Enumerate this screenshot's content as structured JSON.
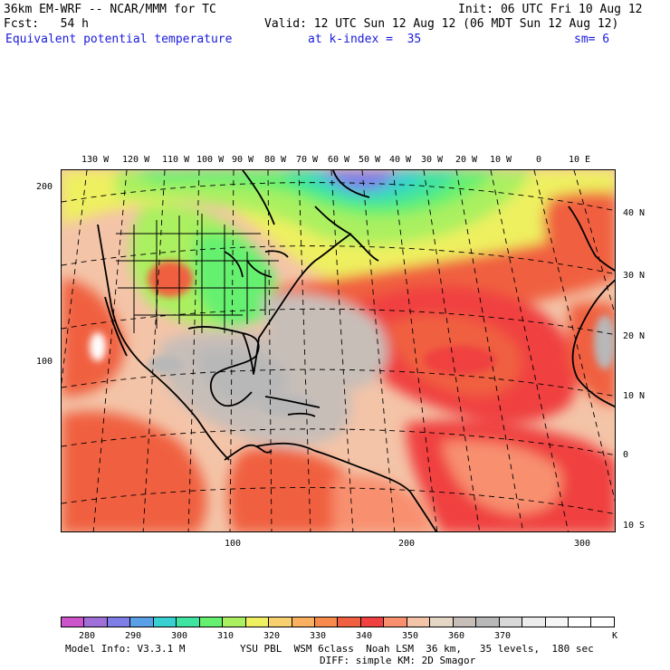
{
  "header": {
    "model": "36km EM-WRF -- NCAR/MMM for TC",
    "init": "Init: 06 UTC Fri 10 Aug 12",
    "fcst": "Fcst:   54 h",
    "valid": "Valid: 12 UTC Sun 12 Aug 12 (06 MDT Sun 12 Aug 12)",
    "field": "Equivalent potential temperature",
    "level": "at k-index =  35",
    "smooth": "sm= 6"
  },
  "top_lon_labels": [
    "130 W",
    "120 W",
    "110 W",
    "100 W",
    "90 W",
    "80 W",
    "70 W",
    "60 W",
    "50 W",
    "40 W",
    "30 W",
    "20 W",
    "10 W",
    "0",
    "10 E"
  ],
  "right_lat_labels": [
    "40 N",
    "30 N",
    "20 N",
    "10 N",
    "0",
    "10 S"
  ],
  "left_grid_labels": [
    "200",
    "100"
  ],
  "bottom_grid_labels": [
    "100",
    "200",
    "300"
  ],
  "colorbar": {
    "labels": [
      "280",
      "290",
      "300",
      "310",
      "320",
      "330",
      "340",
      "350",
      "360",
      "370"
    ],
    "unit": "K",
    "colors": [
      "#cc55cc",
      "#a070d8",
      "#7d7ee8",
      "#5aa0e6",
      "#38d0d0",
      "#3ee4a0",
      "#66f070",
      "#aaf060",
      "#eef060",
      "#f8d070",
      "#fab060",
      "#f88a4e",
      "#f06040",
      "#f04040",
      "#f89070",
      "#f4c4a8",
      "#e6d6c6",
      "#c8beb8",
      "#b8b8b8",
      "#d8d8d8",
      "#ececec",
      "#f6f6f6",
      "#ffffff",
      "#ffffff"
    ]
  },
  "footer": {
    "model_info": "Model Info: V3.3.1 M",
    "physics": "YSU PBL  WSM 6class  Noah LSM  36 km,   35 levels,  180 sec",
    "diff": "DIFF: simple KM: 2D Smagor"
  }
}
